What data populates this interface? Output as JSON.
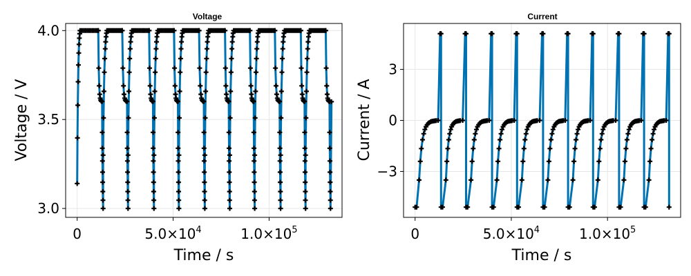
{
  "chart_data": [
    {
      "type": "line",
      "title": "Voltage",
      "xlabel": "Time / s",
      "ylabel": "Voltage / V",
      "xlim": [
        -6000,
        138000
      ],
      "ylim": [
        2.95,
        4.04
      ],
      "grid": true,
      "x_ticks": [
        {
          "value": 0,
          "base": "0",
          "exp": ""
        },
        {
          "value": 50000,
          "base": "5.0×10",
          "exp": "4"
        },
        {
          "value": 100000,
          "base": "1.0×10",
          "exp": "5"
        }
      ],
      "y_ticks": [
        {
          "value": 3.0,
          "label": "3.0"
        },
        {
          "value": 3.5,
          "label": "3.5"
        },
        {
          "value": 4.0,
          "label": "4.0"
        }
      ],
      "cycles": [
        {
          "charge_start": 0,
          "cv_start": 1500,
          "rest_start": 11000,
          "discharge_start": 13000,
          "end": 13500
        },
        {
          "charge_start": 13500,
          "cv_start": 15500,
          "rest_start": 23500,
          "discharge_start": 26000,
          "end": 26500
        },
        {
          "charge_start": 26500,
          "cv_start": 28500,
          "rest_start": 37500,
          "discharge_start": 39500,
          "end": 40000
        },
        {
          "charge_start": 40000,
          "cv_start": 42000,
          "rest_start": 50500,
          "discharge_start": 52500,
          "end": 53000
        },
        {
          "charge_start": 53000,
          "cv_start": 55000,
          "rest_start": 63500,
          "discharge_start": 66000,
          "end": 66500
        },
        {
          "charge_start": 66500,
          "cv_start": 68500,
          "rest_start": 77000,
          "discharge_start": 79000,
          "end": 79500
        },
        {
          "charge_start": 79500,
          "cv_start": 81500,
          "rest_start": 90000,
          "discharge_start": 92000,
          "end": 92500
        },
        {
          "charge_start": 92500,
          "cv_start": 94500,
          "rest_start": 103000,
          "discharge_start": 105500,
          "end": 106000
        },
        {
          "charge_start": 106000,
          "cv_start": 108000,
          "rest_start": 116500,
          "discharge_start": 118500,
          "end": 119000
        },
        {
          "charge_start": 119000,
          "cv_start": 121000,
          "rest_start": 129500,
          "discharge_start": 131500,
          "end": 132000
        }
      ],
      "levels": {
        "charge_from": 3.14,
        "charge_start_later": 3.3,
        "cv": 4.0,
        "rest_end": 3.6,
        "discharge_to": 3.0,
        "final": 3.6
      },
      "line_color": "#0072b2",
      "marker_color": "#000000"
    },
    {
      "type": "line",
      "title": "Current",
      "xlabel": "Time / s",
      "ylabel": "Current / A",
      "xlim": [
        -6000,
        138000
      ],
      "ylim": [
        -5.7,
        5.7
      ],
      "grid": true,
      "x_ticks": [
        {
          "value": 0,
          "base": "0",
          "exp": ""
        },
        {
          "value": 50000,
          "base": "5.0×10",
          "exp": "4"
        },
        {
          "value": 100000,
          "base": "1.0×10",
          "exp": "5"
        }
      ],
      "y_ticks": [
        {
          "value": -3,
          "label": "−3"
        },
        {
          "value": 0,
          "label": "0"
        },
        {
          "value": 3,
          "label": "3"
        }
      ],
      "levels": {
        "charge": -5.1,
        "rest": 0,
        "discharge": 5.1
      },
      "line_color": "#0072b2",
      "marker_color": "#000000"
    }
  ]
}
